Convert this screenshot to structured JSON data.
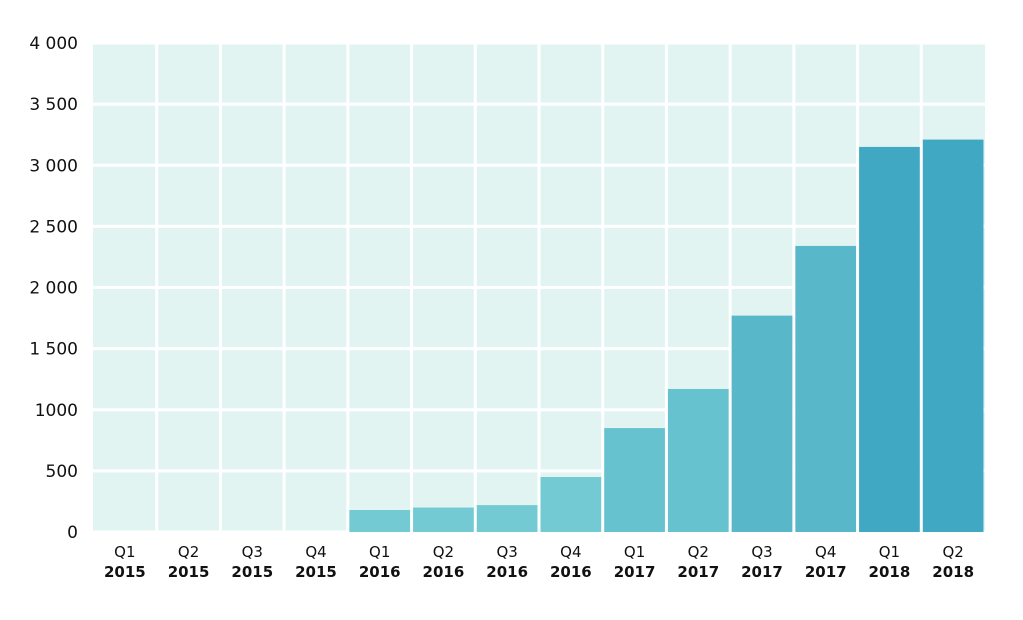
{
  "chart_data": {
    "type": "bar",
    "categories": [
      {
        "quarter": "Q1",
        "year": "2015"
      },
      {
        "quarter": "Q2",
        "year": "2015"
      },
      {
        "quarter": "Q3",
        "year": "2015"
      },
      {
        "quarter": "Q4",
        "year": "2015"
      },
      {
        "quarter": "Q1",
        "year": "2016"
      },
      {
        "quarter": "Q2",
        "year": "2016"
      },
      {
        "quarter": "Q3",
        "year": "2016"
      },
      {
        "quarter": "Q4",
        "year": "2016"
      },
      {
        "quarter": "Q1",
        "year": "2017"
      },
      {
        "quarter": "Q2",
        "year": "2017"
      },
      {
        "quarter": "Q3",
        "year": "2017"
      },
      {
        "quarter": "Q4",
        "year": "2017"
      },
      {
        "quarter": "Q1",
        "year": "2018"
      },
      {
        "quarter": "Q2",
        "year": "2018"
      }
    ],
    "values": [
      0,
      0,
      0,
      0,
      180,
      200,
      220,
      450,
      850,
      1170,
      1770,
      2340,
      3150,
      3210
    ],
    "bar_colors": [
      "#74cad3",
      "#74cad3",
      "#74cad3",
      "#74cad3",
      "#74cad3",
      "#74cad3",
      "#74cad3",
      "#74cad3",
      "#66c2cf",
      "#66c2cf",
      "#58b8ca",
      "#58b8ca",
      "#41a8c4",
      "#41a8c4"
    ],
    "ylim": [
      0,
      4000
    ],
    "yticks": [
      0,
      500,
      1000,
      1500,
      2000,
      2500,
      3000,
      3500,
      4000
    ],
    "ytick_labels": [
      "0",
      "500",
      "1000",
      "1 500",
      "2 000",
      "2 500",
      "3 000",
      "3 500",
      "4 000"
    ],
    "grid": true,
    "plot_background": "#e2f4f2",
    "title": "",
    "xlabel": "",
    "ylabel": ""
  }
}
